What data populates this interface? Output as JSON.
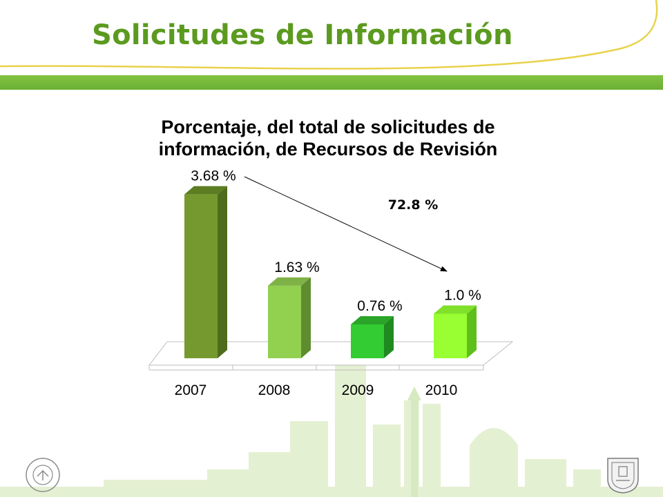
{
  "slide": {
    "title": "Solicitudes de Información"
  },
  "chart_data": {
    "type": "bar",
    "title": "Porcentaje, del total de solicitudes de información, de Recursos de Revisión",
    "categories": [
      "2007",
      "2008",
      "2009",
      "2010"
    ],
    "values": [
      3.68,
      1.63,
      0.76,
      1.0
    ],
    "value_labels": [
      "3.68 %",
      "1.63 %",
      "0.76 %",
      "1.0 %"
    ],
    "ylim": [
      0,
      4
    ],
    "grid": false,
    "legend": "none",
    "annotation": {
      "text": "72.8 %"
    },
    "colors": {
      "bars": [
        "#76992f",
        "#92d050",
        "#33cc33",
        "#99ff33"
      ],
      "sides": [
        "#4f6b1c",
        "#5e8c2f",
        "#1f8a1f",
        "#5fbf1a"
      ],
      "tops": [
        "#5c7d22",
        "#7fb246",
        "#2aa52a",
        "#80e02a"
      ]
    }
  },
  "footer": {
    "left_logo": "ciudad-con-equidad-seal",
    "right_logo": "coat-of-arms-icon"
  },
  "theme": {
    "accent": "#5b9a1f",
    "band": "#78bc3a"
  }
}
